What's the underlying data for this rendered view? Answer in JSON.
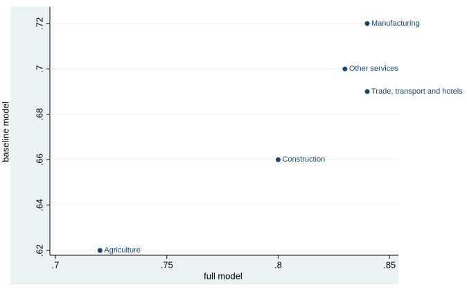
{
  "chart_data": {
    "type": "scatter",
    "xlabel": "full model",
    "ylabel": "baseline model",
    "series": [
      {
        "color": "#1a476f",
        "x": [
          0.84,
          0.83,
          0.84,
          0.8,
          0.72
        ],
        "values": [
          0.72,
          0.7,
          0.69,
          0.66,
          0.62
        ],
        "point_labels": [
          "Manufacturing",
          "Other services",
          "Trade, transport and hotels",
          "Construction",
          "Agriculture"
        ]
      }
    ],
    "xlim": [
      0.6975,
      0.854
    ],
    "ylim": [
      0.6179,
      0.7273
    ],
    "xticks": [
      {
        "value": 0.7,
        "label": ".7"
      },
      {
        "value": 0.75,
        "label": ".75"
      },
      {
        "value": 0.8,
        "label": ".8"
      },
      {
        "value": 0.85,
        "label": ".85"
      }
    ],
    "yticks": [
      {
        "value": 0.62,
        "label": ".62"
      },
      {
        "value": 0.64,
        "label": ".64"
      },
      {
        "value": 0.66,
        "label": ".66"
      },
      {
        "value": 0.68,
        "label": ".68"
      },
      {
        "value": 0.7,
        "label": ".7"
      },
      {
        "value": 0.72,
        "label": ".72"
      }
    ],
    "grid": true
  }
}
